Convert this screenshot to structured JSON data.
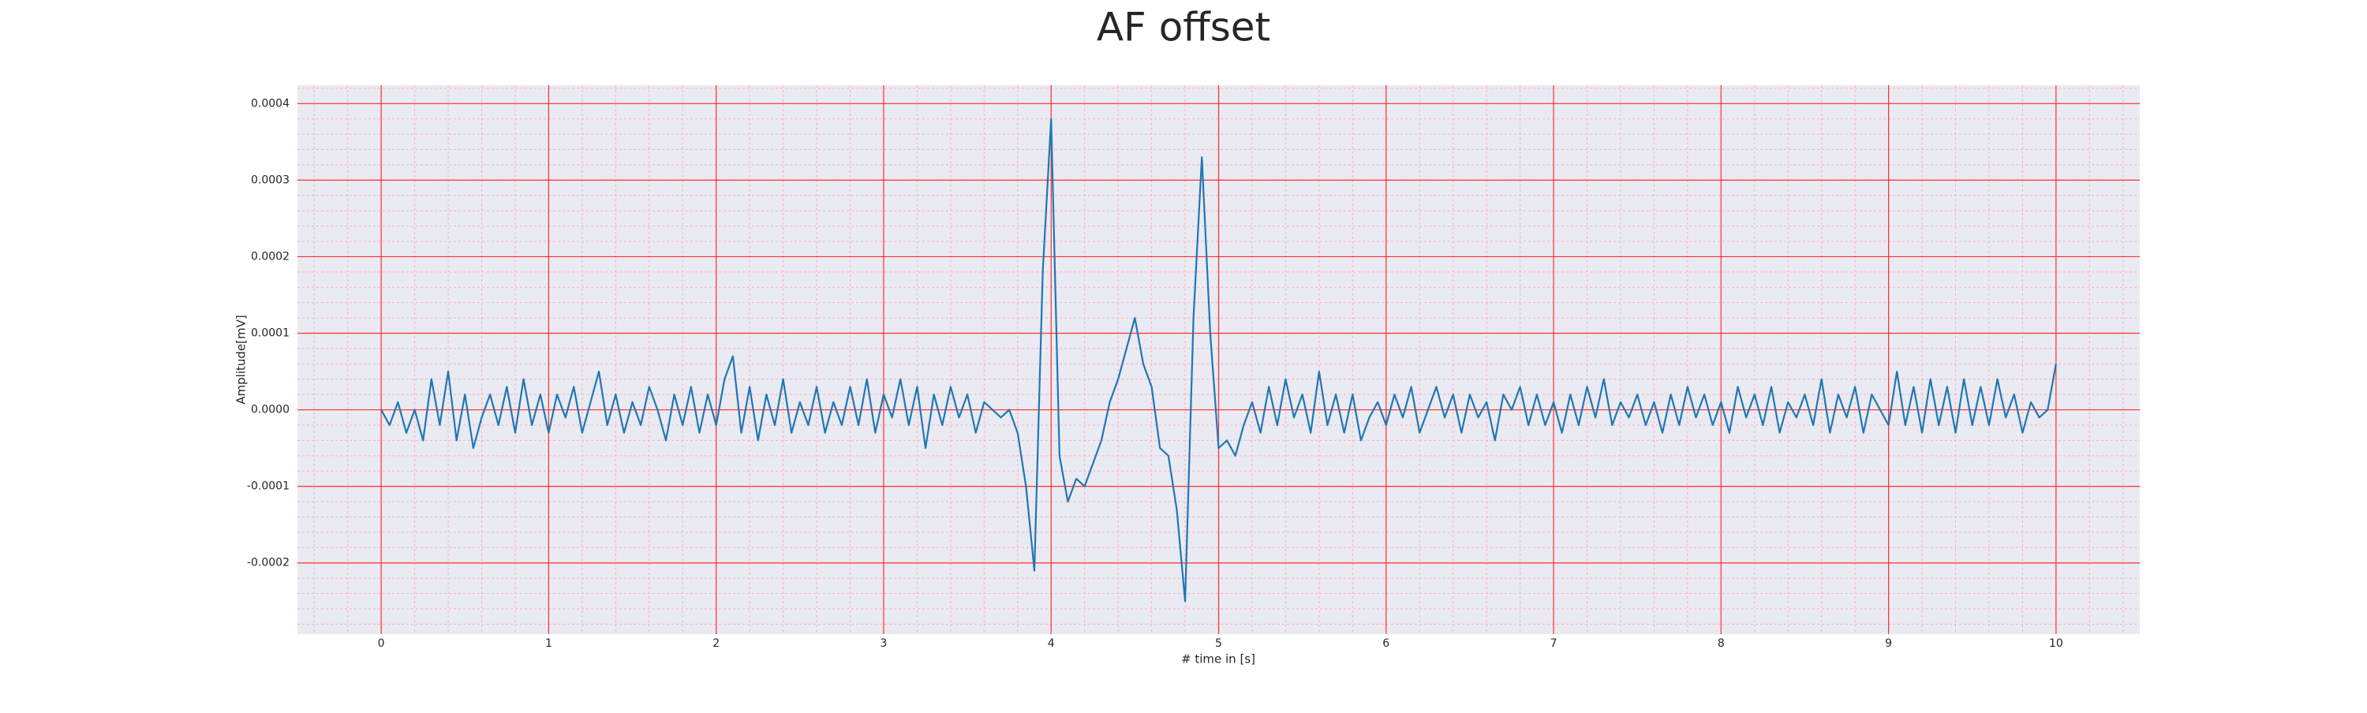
{
  "chart_data": {
    "type": "line",
    "title": "AF offset",
    "x_label": "# time in [s]",
    "y_label": "Amplitude[mV]",
    "xlim": [
      -0.5,
      10.5
    ],
    "xticks": [
      0,
      1,
      2,
      3,
      4,
      5,
      6,
      7,
      8,
      9,
      10
    ],
    "ylim": [
      -0.000293,
      0.000424
    ],
    "yticks": [
      {
        "value": -0.0002,
        "label": "-0.0002"
      },
      {
        "value": -0.0001,
        "label": "-0.0001"
      },
      {
        "value": 0,
        "label": "0.0000"
      },
      {
        "value": 0.0001,
        "label": "0.0001"
      },
      {
        "value": 0.0002,
        "label": "0.0002"
      },
      {
        "value": 0.0003,
        "label": "0.0003"
      },
      {
        "value": 0.0004,
        "label": "0.0004"
      }
    ],
    "grid": true,
    "grid_color": "#ff3030",
    "minor_grid": {
      "x_step": 0.2,
      "y_step": 2e-05,
      "color": "#ffb0c0"
    },
    "background": "#eaeaf2",
    "series": [
      {
        "color": "#1f77b4",
        "x": [
          0,
          0.05,
          0.1,
          0.15,
          0.2,
          0.25,
          0.3,
          0.35,
          0.4,
          0.45,
          0.5,
          0.55,
          0.6,
          0.65,
          0.7,
          0.75,
          0.8,
          0.85,
          0.9,
          0.95,
          1,
          1.05,
          1.1,
          1.15,
          1.2,
          1.25,
          1.3,
          1.35,
          1.4,
          1.45,
          1.5,
          1.55,
          1.6,
          1.65,
          1.7,
          1.75,
          1.8,
          1.85,
          1.9,
          1.95,
          2,
          2.05,
          2.1,
          2.15,
          2.2,
          2.25,
          2.3,
          2.35,
          2.4,
          2.45,
          2.5,
          2.55,
          2.6,
          2.65,
          2.7,
          2.75,
          2.8,
          2.85,
          2.9,
          2.95,
          3,
          3.05,
          3.1,
          3.15,
          3.2,
          3.25,
          3.3,
          3.35,
          3.4,
          3.45,
          3.5,
          3.55,
          3.6,
          3.65,
          3.7,
          3.75,
          3.8,
          3.85,
          3.9,
          3.95,
          4,
          4.05,
          4.1,
          4.15,
          4.2,
          4.25,
          4.3,
          4.35,
          4.4,
          4.45,
          4.5,
          4.55,
          4.6,
          4.65,
          4.7,
          4.75,
          4.8,
          4.85,
          4.9,
          4.95,
          5,
          5.05,
          5.1,
          5.15,
          5.2,
          5.25,
          5.3,
          5.35,
          5.4,
          5.45,
          5.5,
          5.55,
          5.6,
          5.65,
          5.7,
          5.75,
          5.8,
          5.85,
          5.9,
          5.95,
          6,
          6.05,
          6.1,
          6.15,
          6.2,
          6.25,
          6.3,
          6.35,
          6.4,
          6.45,
          6.5,
          6.55,
          6.6,
          6.65,
          6.7,
          6.75,
          6.8,
          6.85,
          6.9,
          6.95,
          7,
          7.05,
          7.1,
          7.15,
          7.2,
          7.25,
          7.3,
          7.35,
          7.4,
          7.45,
          7.5,
          7.55,
          7.6,
          7.65,
          7.7,
          7.75,
          7.8,
          7.85,
          7.9,
          7.95,
          8,
          8.05,
          8.1,
          8.15,
          8.2,
          8.25,
          8.3,
          8.35,
          8.4,
          8.45,
          8.5,
          8.55,
          8.6,
          8.65,
          8.7,
          8.75,
          8.8,
          8.85,
          8.9,
          8.95,
          9,
          9.05,
          9.1,
          9.15,
          9.2,
          9.25,
          9.3,
          9.35,
          9.4,
          9.45,
          9.5,
          9.55,
          9.6,
          9.65,
          9.7,
          9.75,
          9.8,
          9.85,
          9.9,
          9.95,
          10
        ],
        "values": [
          0,
          -2e-05,
          1e-05,
          -3e-05,
          0,
          -4e-05,
          4e-05,
          -2e-05,
          5e-05,
          -4e-05,
          2e-05,
          -5e-05,
          -1e-05,
          2e-05,
          -2e-05,
          3e-05,
          -3e-05,
          4e-05,
          -2e-05,
          2e-05,
          -3e-05,
          2e-05,
          -1e-05,
          3e-05,
          -3e-05,
          1e-05,
          5e-05,
          -2e-05,
          2e-05,
          -3e-05,
          1e-05,
          -2e-05,
          3e-05,
          0,
          -4e-05,
          2e-05,
          -2e-05,
          3e-05,
          -3e-05,
          2e-05,
          -2e-05,
          4e-05,
          7e-05,
          -3e-05,
          3e-05,
          -4e-05,
          2e-05,
          -2e-05,
          4e-05,
          -3e-05,
          1e-05,
          -2e-05,
          3e-05,
          -3e-05,
          1e-05,
          -2e-05,
          3e-05,
          -2e-05,
          4e-05,
          -3e-05,
          2e-05,
          -1e-05,
          4e-05,
          -2e-05,
          3e-05,
          -5e-05,
          2e-05,
          -2e-05,
          3e-05,
          -1e-05,
          2e-05,
          -3e-05,
          1e-05,
          0,
          -1e-05,
          0,
          -3e-05,
          -0.0001,
          -0.00021,
          0.00018,
          0.00038,
          -6e-05,
          -0.00012,
          -9e-05,
          -0.0001,
          -7e-05,
          -4e-05,
          1e-05,
          4e-05,
          8e-05,
          0.00012,
          6e-05,
          3e-05,
          -5e-05,
          -6e-05,
          -0.00013,
          -0.00025,
          0.00012,
          0.00033,
          0.0001,
          -5e-05,
          -4e-05,
          -6e-05,
          -2e-05,
          1e-05,
          -3e-05,
          3e-05,
          -2e-05,
          4e-05,
          -1e-05,
          2e-05,
          -3e-05,
          5e-05,
          -2e-05,
          2e-05,
          -3e-05,
          2e-05,
          -4e-05,
          -1e-05,
          1e-05,
          -2e-05,
          2e-05,
          -1e-05,
          3e-05,
          -3e-05,
          0,
          3e-05,
          -1e-05,
          2e-05,
          -3e-05,
          2e-05,
          -1e-05,
          1e-05,
          -4e-05,
          2e-05,
          0,
          3e-05,
          -2e-05,
          2e-05,
          -2e-05,
          1e-05,
          -3e-05,
          2e-05,
          -2e-05,
          3e-05,
          -1e-05,
          4e-05,
          -2e-05,
          1e-05,
          -1e-05,
          2e-05,
          -2e-05,
          1e-05,
          -3e-05,
          2e-05,
          -2e-05,
          3e-05,
          -1e-05,
          2e-05,
          -2e-05,
          1e-05,
          -3e-05,
          3e-05,
          -1e-05,
          2e-05,
          -2e-05,
          3e-05,
          -3e-05,
          1e-05,
          -1e-05,
          2e-05,
          -2e-05,
          4e-05,
          -3e-05,
          2e-05,
          -1e-05,
          3e-05,
          -3e-05,
          2e-05,
          0,
          -2e-05,
          5e-05,
          -2e-05,
          3e-05,
          -3e-05,
          4e-05,
          -2e-05,
          3e-05,
          -3e-05,
          4e-05,
          -2e-05,
          3e-05,
          -2e-05,
          4e-05,
          -1e-05,
          2e-05,
          -3e-05,
          1e-05,
          -1e-05,
          0,
          6e-05
        ]
      }
    ]
  }
}
